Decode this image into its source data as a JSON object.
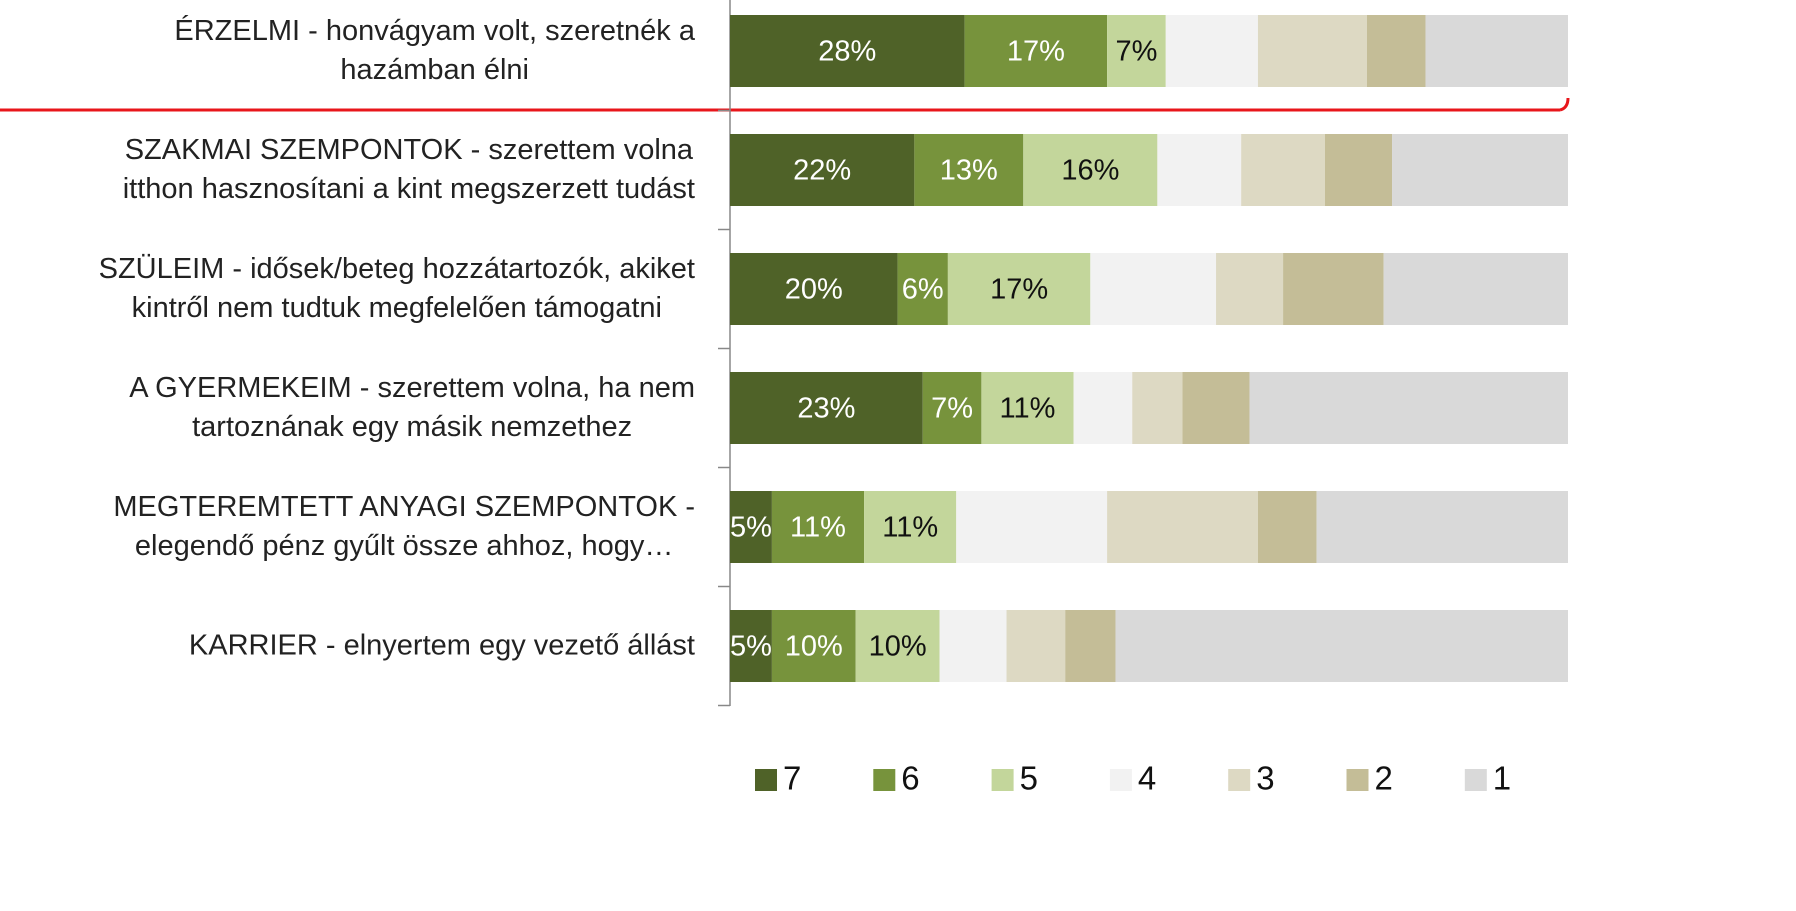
{
  "chart_data": {
    "type": "stacked-bar-horizontal",
    "categories": [
      "ÉRZELMI - honvágyam volt, szeretnék a\nhazámban élni",
      "SZAKMAI SZEMPONTOK - szerettem volna\nitthon hasznosítani a kint megszerzett tudást",
      "SZÜLEIM - idősek/beteg hozzátartozók, akiket\nkintről nem tudtuk megfelelően támogatni",
      "A GYERMEKEIM - szerettem volna, ha nem\ntartoznának egy másik nemzethez",
      "MEGTEREMTETT ANYAGI SZEMPONTOK -\nelegendő pénz gyűlt össze ahhoz, hogy…",
      "KARRIER - elnyertem egy vezető állást"
    ],
    "series": [
      {
        "name": "7",
        "color": "#4f6228",
        "values": [
          28,
          22,
          20,
          23,
          5,
          5
        ],
        "value_labels": [
          "28%",
          "22%",
          "20%",
          "23%",
          "5%",
          "5%"
        ]
      },
      {
        "name": "6",
        "color": "#77933c",
        "values": [
          17,
          13,
          6,
          7,
          11,
          10
        ],
        "value_labels": [
          "17%",
          "13%",
          "6%",
          "7%",
          "11%",
          "10%"
        ]
      },
      {
        "name": "5",
        "color": "#c3d69b",
        "values": [
          7,
          16,
          17,
          11,
          11,
          10
        ],
        "value_labels": [
          "7%",
          "16%",
          "17%",
          "11%",
          "11%",
          "10%"
        ]
      },
      {
        "name": "4",
        "color": "#f2f2f2",
        "values": [
          11,
          10,
          15,
          7,
          18,
          8
        ]
      },
      {
        "name": "3",
        "color": "#ddd9c3",
        "values": [
          13,
          10,
          8,
          6,
          18,
          7
        ]
      },
      {
        "name": "2",
        "color": "#c4bd97",
        "values": [
          7,
          8,
          12,
          8,
          7,
          6
        ]
      },
      {
        "name": "1",
        "color": "#d9d9d9",
        "values": [
          17,
          21,
          22,
          38,
          30,
          54
        ]
      }
    ],
    "xlim": [
      0,
      100
    ]
  }
}
